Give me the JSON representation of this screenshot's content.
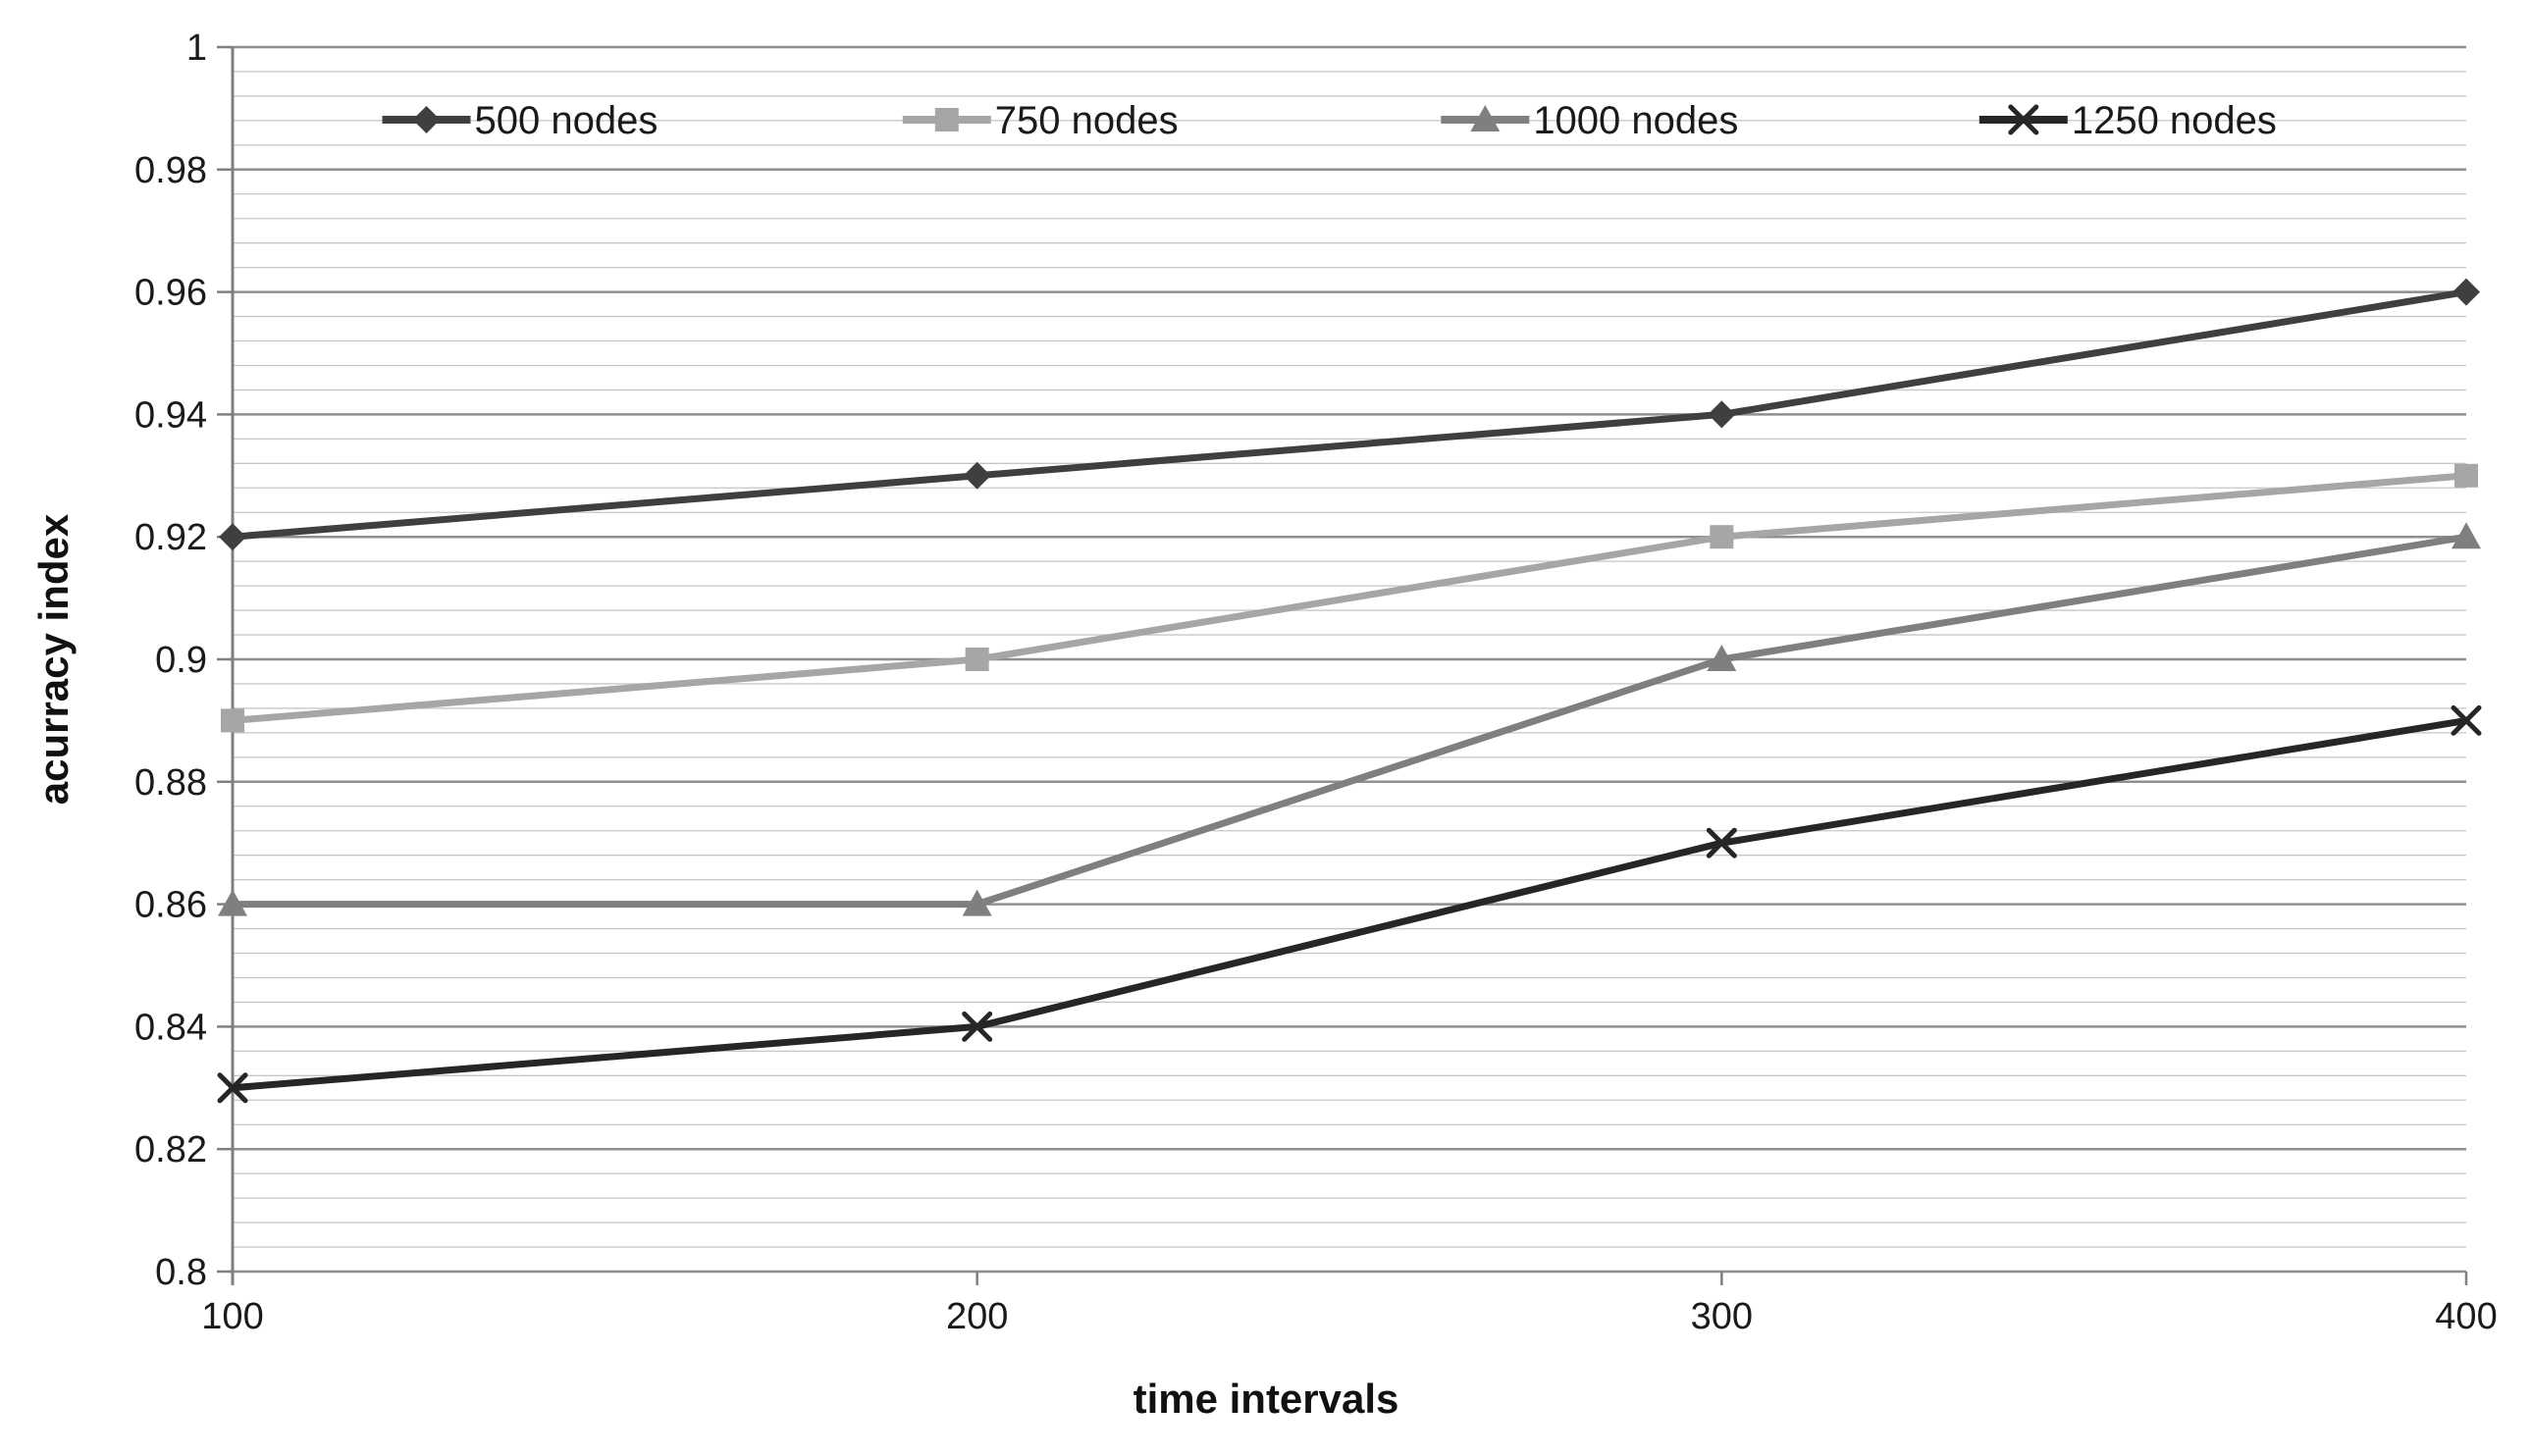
{
  "colors": {
    "background": "#ffffff",
    "grid_major": "#8f8f8f",
    "grid_minor": "#c6c6c6",
    "axis": "#7f7f7f",
    "tick_text": "#1a1a1a",
    "legend_text": "#1a1a1a",
    "axis_title_text": "#111111"
  },
  "chart_data": {
    "type": "line",
    "title": "",
    "xlabel": "time intervals",
    "ylabel": "acurracy index",
    "x": [
      100,
      200,
      300,
      400
    ],
    "x_tick_labels": [
      "100",
      "200",
      "300",
      "400"
    ],
    "y_tick_labels": [
      "1",
      "0.98",
      "0.96",
      "0.94",
      "0.92",
      "0.9",
      "0.88",
      "0.86",
      "0.84",
      "0.82",
      "0.8"
    ],
    "ylim": [
      0.8,
      1.0
    ],
    "y_major_step": 0.02,
    "y_minor_step": 0.004,
    "grid": "on",
    "legend_position": "top-inside-horizontal",
    "series": [
      {
        "name": "500 nodes",
        "marker": "diamond",
        "color": "#3f3f3f",
        "values": [
          0.92,
          0.93,
          0.94,
          0.96
        ]
      },
      {
        "name": "750 nodes",
        "marker": "square",
        "color": "#a6a6a6",
        "values": [
          0.89,
          0.9,
          0.92,
          0.93
        ]
      },
      {
        "name": "1000 nodes",
        "marker": "triangle",
        "color": "#7f7f7f",
        "values": [
          0.86,
          0.86,
          0.9,
          0.92
        ]
      },
      {
        "name": "1250 nodes",
        "marker": "x",
        "color": "#262626",
        "values": [
          0.83,
          0.84,
          0.87,
          0.89
        ]
      }
    ]
  }
}
